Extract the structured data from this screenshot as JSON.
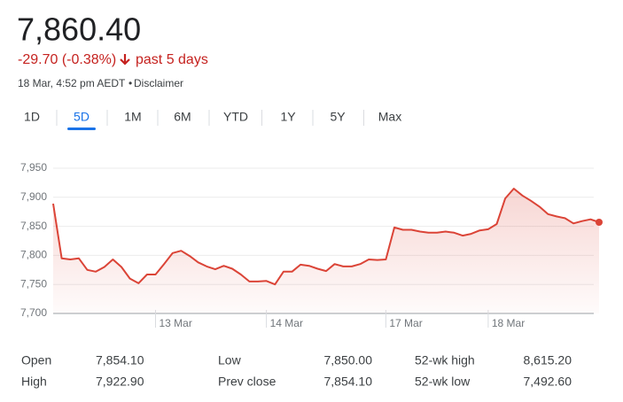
{
  "header": {
    "price": "7,860.40",
    "change": "-29.70 (-0.38%)",
    "period": "past 5 days",
    "timestamp": "18 Mar, 4:52 pm AEDT",
    "disclaimer": "Disclaimer"
  },
  "tabs": {
    "items": [
      "1D",
      "5D",
      "1M",
      "6M",
      "YTD",
      "1Y",
      "5Y",
      "Max"
    ],
    "selected": 1
  },
  "chart_data": {
    "type": "line",
    "color": "#db4437",
    "values": [
      7889,
      7795,
      7793,
      7795,
      7775,
      7772,
      7780,
      7793,
      7780,
      7760,
      7752,
      7767,
      7767,
      7785,
      7804,
      7808,
      7799,
      7788,
      7781,
      7776,
      7782,
      7777,
      7767,
      7755,
      7755,
      7756,
      7750,
      7772,
      7772,
      7784,
      7782,
      7777,
      7773,
      7785,
      7781,
      7781,
      7785,
      7793,
      7792,
      7793,
      7848,
      7844,
      7844,
      7841,
      7839,
      7839,
      7841,
      7839,
      7834,
      7837,
      7843,
      7845,
      7854,
      7898,
      7915,
      7903,
      7894,
      7884,
      7871,
      7867,
      7864,
      7855,
      7859,
      7862,
      7857
    ],
    "xlim": [
      0,
      64
    ],
    "xticks": [
      {
        "value": 12,
        "label": "13 Mar"
      },
      {
        "value": 25,
        "label": "14 Mar"
      },
      {
        "value": 39,
        "label": "17 Mar"
      },
      {
        "value": 51,
        "label": "18 Mar"
      }
    ],
    "ylim": [
      7700,
      7950
    ],
    "yticks": [
      {
        "value": 7700,
        "label": "7,700"
      },
      {
        "value": 7750,
        "label": "7,750"
      },
      {
        "value": 7800,
        "label": "7,800"
      },
      {
        "value": 7850,
        "label": "7,850"
      },
      {
        "value": 7900,
        "label": "7,900"
      },
      {
        "value": 7950,
        "label": "7,950"
      }
    ],
    "grid": true
  },
  "stats": [
    [
      "Open",
      "7,854.10",
      "Low",
      "7,850.00",
      "52-wk high",
      "8,615.20"
    ],
    [
      "High",
      "7,922.90",
      "Prev close",
      "7,854.10",
      "52-wk low",
      "7,492.60"
    ]
  ]
}
